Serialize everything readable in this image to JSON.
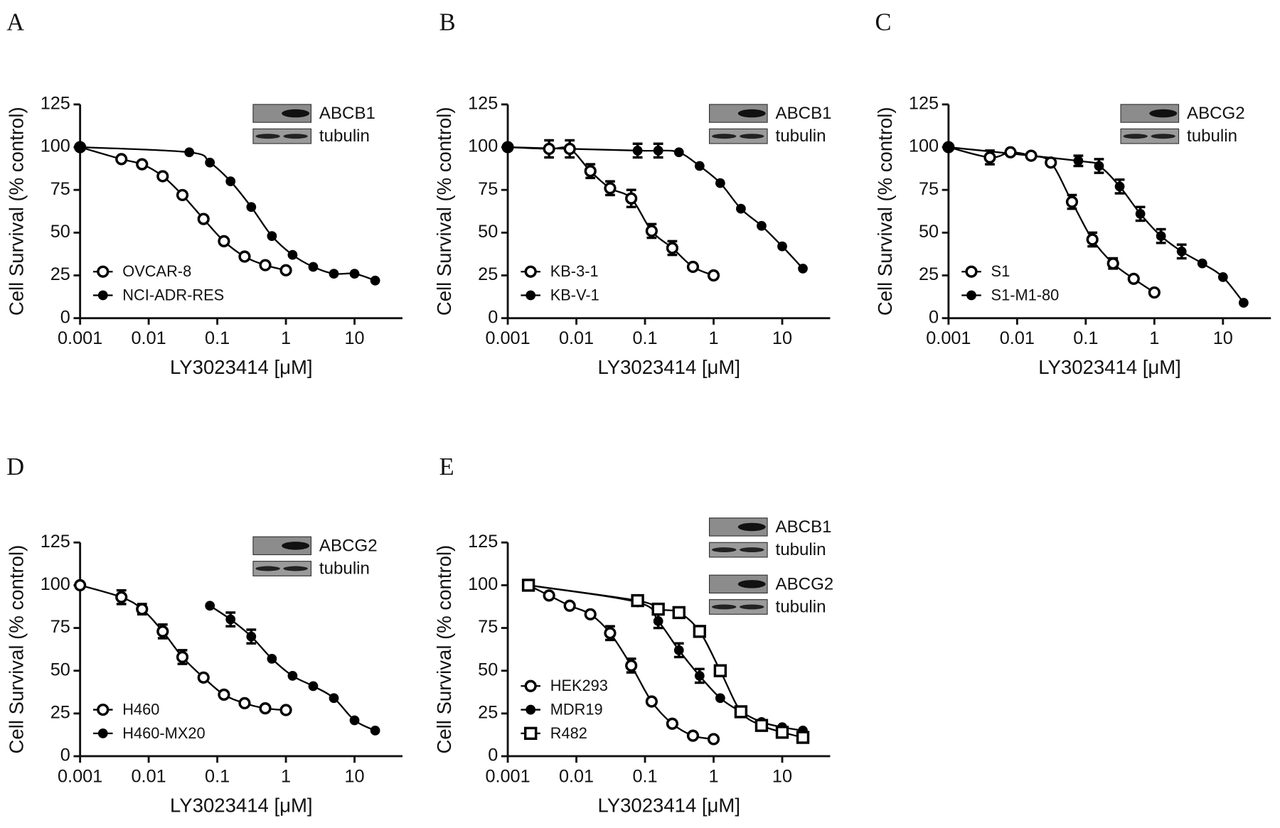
{
  "chart_data": [
    {
      "type": "scatter",
      "panel_label": "A",
      "xlabel": "LY3023414 [μM]",
      "ylabel": "Cell Survival (% control)",
      "xscale": "log",
      "xlim": [
        0.001,
        50
      ],
      "xticks": [
        0.001,
        0.01,
        0.1,
        1,
        10
      ],
      "ylim": [
        0,
        125
      ],
      "yticks": [
        0,
        25,
        50,
        75,
        100,
        125
      ],
      "legend": "lower left",
      "blots": [
        "ABCB1",
        "tubulin"
      ],
      "series": [
        {
          "name": "OVCAR-8",
          "marker": "open-circle",
          "color": "#000000",
          "x": [
            0.001,
            0.004,
            0.008,
            0.016,
            0.031,
            0.063,
            0.125,
            0.25,
            0.5,
            1
          ],
          "values": [
            100,
            93,
            90,
            83,
            72,
            58,
            45,
            36,
            31,
            28
          ]
        },
        {
          "name": "NCI-ADR-RES",
          "marker": "filled-circle",
          "color": "#000000",
          "x": [
            0.001,
            0.039,
            0.078,
            0.156,
            0.3125,
            0.625,
            1.25,
            2.5,
            5,
            10,
            20
          ],
          "values": [
            100,
            97,
            91,
            80,
            65,
            48,
            37,
            30,
            26,
            26,
            22
          ]
        }
      ]
    },
    {
      "type": "scatter",
      "panel_label": "B",
      "xlabel": "LY3023414 [μM]",
      "ylabel": "Cell Survival (% control)",
      "xscale": "log",
      "xlim": [
        0.001,
        50
      ],
      "xticks": [
        0.001,
        0.01,
        0.1,
        1,
        10
      ],
      "ylim": [
        0,
        125
      ],
      "yticks": [
        0,
        25,
        50,
        75,
        100,
        125
      ],
      "legend": "lower left",
      "blots": [
        "ABCB1",
        "tubulin"
      ],
      "series": [
        {
          "name": "KB-3-1",
          "marker": "open-circle",
          "color": "#000000",
          "x": [
            0.001,
            0.004,
            0.008,
            0.016,
            0.031,
            0.063,
            0.125,
            0.25,
            0.5,
            1
          ],
          "values": [
            100,
            99,
            99,
            86,
            76,
            70,
            51,
            41,
            30,
            25
          ],
          "errors": [
            null,
            5,
            5,
            4,
            4,
            5,
            4,
            4,
            null,
            null
          ]
        },
        {
          "name": "KB-V-1",
          "marker": "filled-circle",
          "color": "#000000",
          "x": [
            0.001,
            0.078,
            0.156,
            0.3125,
            0.625,
            1.25,
            2.5,
            5,
            10,
            20
          ],
          "values": [
            100,
            98,
            98,
            97,
            89,
            79,
            64,
            54,
            42,
            29
          ],
          "errors": [
            null,
            4,
            4,
            null,
            null,
            null,
            null,
            null,
            null,
            null
          ]
        }
      ]
    },
    {
      "type": "scatter",
      "panel_label": "C",
      "xlabel": "LY3023414 [μM]",
      "ylabel": "Cell Survival (% control)",
      "xscale": "log",
      "xlim": [
        0.001,
        50
      ],
      "xticks": [
        0.001,
        0.01,
        0.1,
        1,
        10
      ],
      "ylim": [
        0,
        125
      ],
      "yticks": [
        0,
        25,
        50,
        75,
        100,
        125
      ],
      "legend": "lower left",
      "blots": [
        "ABCG2",
        "tubulin"
      ],
      "series": [
        {
          "name": "S1",
          "marker": "open-circle",
          "color": "#000000",
          "x": [
            0.001,
            0.004,
            0.008,
            0.016,
            0.031,
            0.063,
            0.125,
            0.25,
            0.5,
            1
          ],
          "values": [
            100,
            94,
            97,
            95,
            91,
            68,
            46,
            32,
            23,
            15
          ],
          "errors": [
            null,
            4,
            null,
            null,
            null,
            4,
            4,
            3,
            null,
            null
          ]
        },
        {
          "name": "S1-M1-80",
          "marker": "filled-circle",
          "color": "#000000",
          "x": [
            0.001,
            0.078,
            0.156,
            0.3125,
            0.625,
            1.25,
            2.5,
            5,
            10,
            20
          ],
          "values": [
            100,
            92,
            89,
            77,
            61,
            48,
            39,
            32,
            24,
            9
          ],
          "errors": [
            null,
            3,
            4,
            4,
            4,
            4,
            4,
            null,
            null,
            null
          ]
        }
      ]
    },
    {
      "type": "scatter",
      "panel_label": "D",
      "xlabel": "LY3023414 [μM]",
      "ylabel": "Cell Survival (% control)",
      "xscale": "log",
      "xlim": [
        0.001,
        50
      ],
      "xticks": [
        0.001,
        0.01,
        0.1,
        1,
        10
      ],
      "ylim": [
        0,
        125
      ],
      "yticks": [
        0,
        25,
        50,
        75,
        100,
        125
      ],
      "legend": "lower left",
      "blots": [
        "ABCG2",
        "tubulin"
      ],
      "series": [
        {
          "name": "H460",
          "marker": "open-circle",
          "color": "#000000",
          "x": [
            0.001,
            0.004,
            0.008,
            0.016,
            0.031,
            0.063,
            0.125,
            0.25,
            0.5,
            1
          ],
          "values": [
            100,
            93,
            86,
            73,
            58,
            46,
            36,
            31,
            28,
            27
          ],
          "errors": [
            null,
            4,
            3,
            4,
            4,
            null,
            null,
            null,
            null,
            null
          ]
        },
        {
          "name": "H460-MX20",
          "marker": "filled-circle",
          "color": "#000000",
          "x": [
            0.078,
            0.156,
            0.3125,
            0.625,
            1.25,
            2.5,
            5,
            10,
            20
          ],
          "values": [
            88,
            80,
            70,
            57,
            47,
            41,
            34,
            21,
            15
          ],
          "errors": [
            null,
            4,
            4,
            null,
            null,
            null,
            null,
            null,
            null
          ]
        }
      ]
    },
    {
      "type": "scatter",
      "panel_label": "E",
      "xlabel": "LY3023414 [μM]",
      "ylabel": "Cell Survival (% control)",
      "xscale": "log",
      "xlim": [
        0.001,
        50
      ],
      "xticks": [
        0.001,
        0.01,
        0.1,
        1,
        10
      ],
      "ylim": [
        0,
        125
      ],
      "yticks": [
        0,
        25,
        50,
        75,
        100,
        125
      ],
      "legend": "lower left",
      "blots": [
        "ABCB1",
        "tubulin",
        "ABCG2",
        "tubulin"
      ],
      "series": [
        {
          "name": "HEK293",
          "marker": "open-circle",
          "color": "#000000",
          "x": [
            0.002,
            0.004,
            0.008,
            0.016,
            0.031,
            0.063,
            0.125,
            0.25,
            0.5,
            1
          ],
          "values": [
            100,
            94,
            88,
            83,
            72,
            53,
            32,
            19,
            12,
            10
          ],
          "errors": [
            null,
            null,
            null,
            null,
            4,
            4,
            null,
            null,
            null,
            null
          ]
        },
        {
          "name": "MDR19",
          "marker": "filled-circle",
          "color": "#000000",
          "x": [
            0.002,
            0.078,
            0.156,
            0.3125,
            0.625,
            1.25,
            2.5,
            5,
            10,
            20
          ],
          "values": [
            100,
            90,
            79,
            62,
            47,
            34,
            26,
            20,
            17,
            15
          ],
          "errors": [
            null,
            null,
            4,
            4,
            4,
            null,
            null,
            null,
            null,
            null
          ]
        },
        {
          "name": "R482",
          "marker": "open-square",
          "color": "#000000",
          "x": [
            0.002,
            0.078,
            0.156,
            0.3125,
            0.625,
            1.25,
            2.5,
            5,
            10,
            20
          ],
          "values": [
            100,
            91,
            86,
            84,
            73,
            50,
            26,
            18,
            14,
            11
          ]
        }
      ]
    }
  ]
}
